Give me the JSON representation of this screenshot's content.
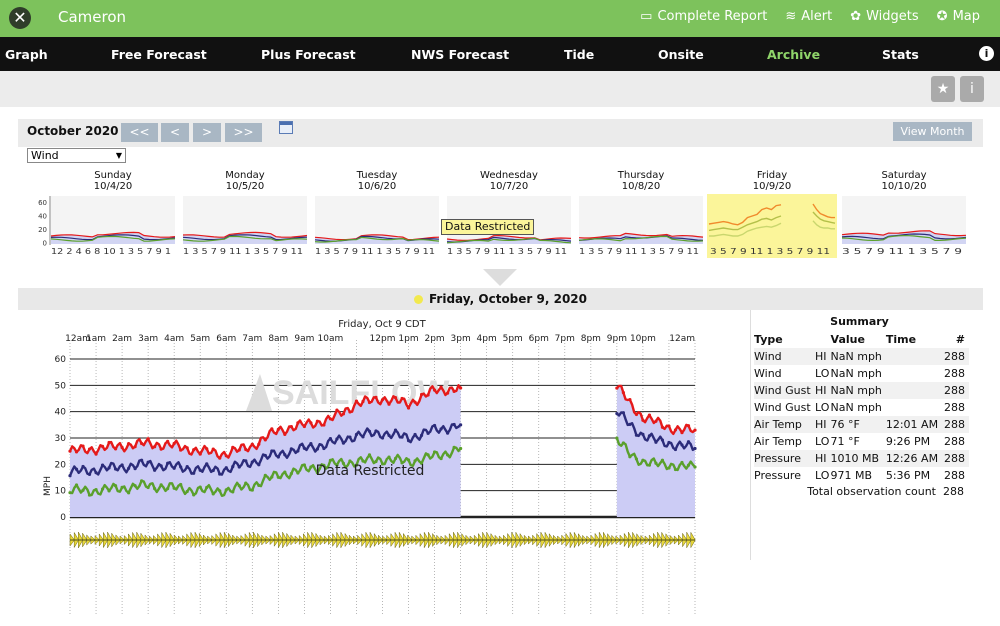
{
  "header": {
    "station_name": "Cameron",
    "links": [
      {
        "icon": "report-icon",
        "glyph": "▭",
        "label": "Complete Report"
      },
      {
        "icon": "alert-icon",
        "glyph": "≋",
        "label": "Alert"
      },
      {
        "icon": "widgets-icon",
        "glyph": "✿",
        "label": "Widgets"
      },
      {
        "icon": "map-icon",
        "glyph": "✪",
        "label": "Map"
      }
    ]
  },
  "nav": {
    "items": [
      {
        "label": "Graph"
      },
      {
        "label": "Free Forecast"
      },
      {
        "label": "Plus Forecast"
      },
      {
        "label": "NWS Forecast"
      },
      {
        "label": "Tide"
      },
      {
        "label": "Onsite"
      },
      {
        "label": "Archive",
        "active": true
      },
      {
        "label": "Stats"
      }
    ]
  },
  "calendar": {
    "month_label": "October 2020",
    "buttons": {
      "first": "<<",
      "prev": "<",
      "next": ">",
      "last": ">>"
    },
    "view_month": "View Month",
    "select_value": "Wind",
    "days": [
      {
        "name": "Sunday",
        "date": "10/4/20",
        "ticks": "12 2 4 6 8 10 1 3 5 7 9 1"
      },
      {
        "name": "Monday",
        "date": "10/5/20",
        "ticks": "1 3 5 7 9 11 1 3 5 7 9 11"
      },
      {
        "name": "Tuesday",
        "date": "10/6/20",
        "ticks": "1 3 5 7 9 11 1 3 5 7 9 11"
      },
      {
        "name": "Wednesday",
        "date": "10/7/20",
        "ticks": "1 3 5 7 9 11 1 3 5 7 9 11"
      },
      {
        "name": "Thursday",
        "date": "10/8/20",
        "ticks": "1 3 5 7 9 11 1 3 5 7 9 11"
      },
      {
        "name": "Friday",
        "date": "10/9/20",
        "ticks": "3 5 7 9 11 1 3 5 7 9 11"
      },
      {
        "name": "Saturday",
        "date": "10/10/20",
        "ticks": "3 5 7 9 11 1 3 5 7 9"
      }
    ],
    "mini_yticks": [
      "60",
      "40",
      "20",
      "0"
    ],
    "restricted_tip": "Data Restricted"
  },
  "day_header": "Friday, October 9, 2020",
  "chart_data": {
    "type": "line",
    "title": "Friday, Oct 9 CDT",
    "ylabel": "MPH",
    "ylim": [
      0,
      60
    ],
    "yticks": [
      0,
      10,
      20,
      30,
      40,
      50,
      60
    ],
    "x_labels": [
      "12am",
      "1am",
      "2am",
      "3am",
      "4am",
      "5am",
      "6am",
      "7am",
      "8am",
      "9am",
      "10am",
      "12pm",
      "1pm",
      "2pm",
      "3pm",
      "4pm",
      "5pm",
      "6pm",
      "7pm",
      "8pm",
      "9pm",
      "10pm",
      "12am"
    ],
    "x": [
      0,
      1,
      2,
      3,
      4,
      5,
      6,
      7,
      8,
      9,
      10,
      11,
      12,
      13,
      14,
      15,
      21,
      21.5,
      22,
      22.5,
      23,
      23.5,
      24
    ],
    "series": [
      {
        "color": "#e51a1a",
        "values": [
          25,
          26,
          27,
          28,
          27,
          25,
          24,
          27,
          33,
          35,
          37,
          43,
          45,
          43,
          48,
          49,
          50,
          43,
          38,
          36,
          34,
          33,
          33
        ]
      },
      {
        "color": "#2c2c7a",
        "values": [
          17,
          18,
          19,
          20,
          19,
          18,
          18,
          21,
          24,
          26,
          28,
          31,
          32,
          30,
          33,
          35,
          40,
          35,
          31,
          29,
          28,
          27,
          26
        ]
      },
      {
        "color": "#5aa02c",
        "values": [
          10,
          10,
          11,
          12,
          11,
          10,
          10,
          12,
          16,
          18,
          20,
          21,
          22,
          21,
          23,
          26,
          29,
          24,
          21,
          20,
          20,
          19,
          19
        ]
      }
    ],
    "missing_hours": [
      15,
      21
    ],
    "restricted_label": "Data Restricted",
    "watermark": "SAILFLOW"
  },
  "summary": {
    "title": "Summary",
    "headers": [
      "Type",
      "Value",
      "Time",
      "#"
    ],
    "rows": [
      {
        "type": "Wind",
        "hl": "HI",
        "value": "NaN mph",
        "time": "",
        "count": "288"
      },
      {
        "type": "Wind",
        "hl": "LO",
        "value": "NaN mph",
        "time": "",
        "count": "288"
      },
      {
        "type": "Wind Gust",
        "hl": "HI",
        "value": "NaN mph",
        "time": "",
        "count": "288"
      },
      {
        "type": "Wind Gust",
        "hl": "LO",
        "value": "NaN mph",
        "time": "",
        "count": "288"
      },
      {
        "type": "Air Temp",
        "hl": "HI",
        "value": "76 °F",
        "time": "12:01 AM",
        "count": "288"
      },
      {
        "type": "Air Temp",
        "hl": "LO",
        "value": "71 °F",
        "time": "9:26 PM",
        "count": "288"
      },
      {
        "type": "Pressure",
        "hl": "HI",
        "value": "1010 MB",
        "time": "12:26 AM",
        "count": "288"
      },
      {
        "type": "Pressure",
        "hl": "LO",
        "value": "971 MB",
        "time": "5:36 PM",
        "count": "288"
      }
    ],
    "footer_label": "Total observation count",
    "footer_count": "288"
  }
}
